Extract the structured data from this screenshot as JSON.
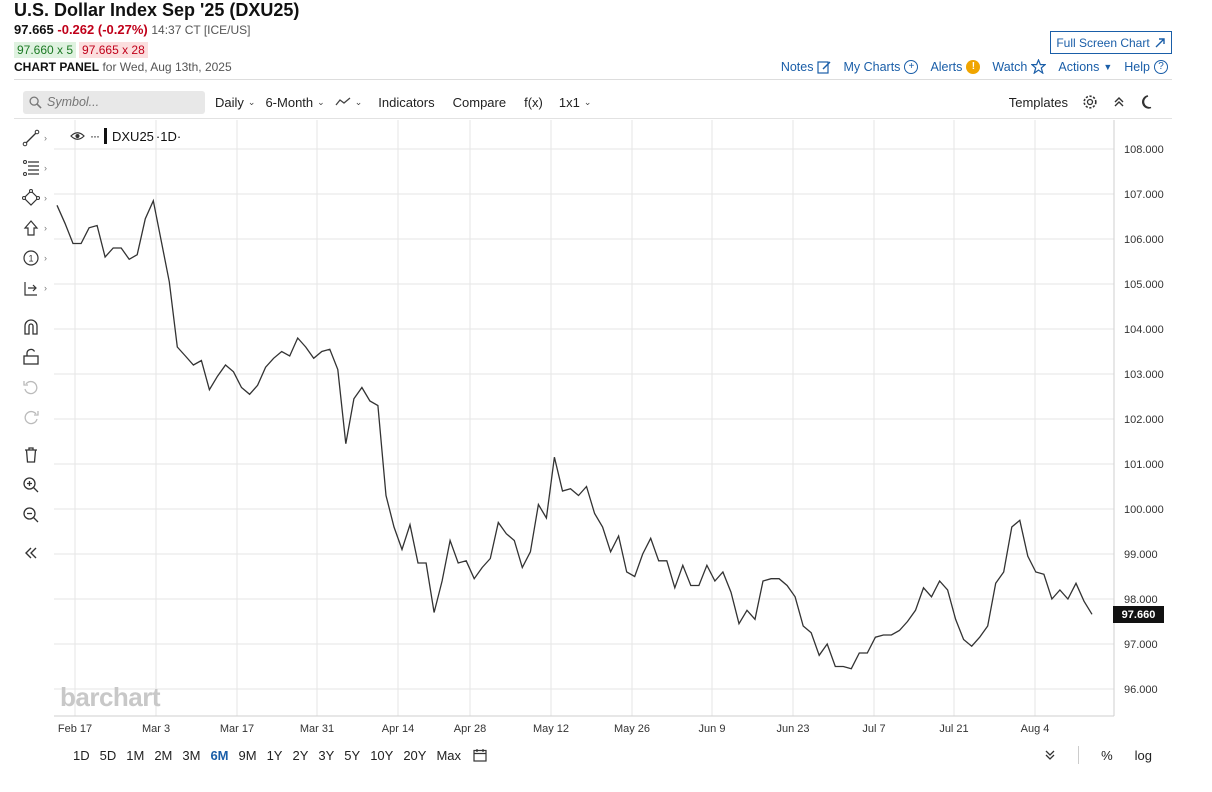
{
  "header": {
    "title": "U.S. Dollar Index Sep '25 (DXU25)",
    "last": "97.665",
    "change": "-0.262 (-0.27%)",
    "time": "14:37 CT [ICE/US]",
    "bid": "97.660 x 5",
    "ask": "97.665 x 28",
    "panel_label": "CHART PANEL",
    "panel_date": "for Wed, Aug 13th, 2025",
    "fullscreen_label": "Full Screen Chart",
    "menu": {
      "notes": "Notes",
      "my_charts": "My Charts",
      "alerts": "Alerts",
      "watch": "Watch",
      "actions": "Actions",
      "help": "Help"
    }
  },
  "toolbar": {
    "symbol_placeholder": "Symbol...",
    "interval": "Daily",
    "period": "6-Month",
    "indicators": "Indicators",
    "compare": "Compare",
    "fx": "f(x)",
    "layout": "1x1",
    "templates": "Templates"
  },
  "legend": {
    "symbol": "DXU25",
    "interval": "·1D·"
  },
  "watermark": "barchart",
  "price_tag": "97.660",
  "ranges": [
    "1D",
    "5D",
    "1M",
    "2M",
    "3M",
    "6M",
    "9M",
    "1Y",
    "2Y",
    "3Y",
    "5Y",
    "10Y",
    "20Y",
    "Max"
  ],
  "active_range": "6M",
  "bottom_right": {
    "percent": "%",
    "log": "log"
  },
  "icons": {
    "search": "search-icon",
    "settings": "gear-icon",
    "collapse": "collapse-up-icon",
    "theme": "moon-icon",
    "calendar": "calendar-icon"
  },
  "colors": {
    "accent": "#1a5ea8",
    "negative": "#c0001a",
    "positive": "#1b7a23",
    "line": "#333333"
  },
  "chart_data": {
    "type": "line",
    "y_ticks": [
      "108.000",
      "107.000",
      "106.000",
      "105.000",
      "104.000",
      "103.000",
      "102.000",
      "101.000",
      "100.000",
      "99.000",
      "98.000",
      "97.000",
      "96.000"
    ],
    "ylim": [
      95.5,
      108.4
    ],
    "x_ticks": [
      "Feb 17",
      "Mar 3",
      "Mar 17",
      "Mar 31",
      "Apr 14",
      "Apr 28",
      "May 12",
      "May 26",
      "Jun 9",
      "Jun 23",
      "Jul 7",
      "Jul 21",
      "Aug 4"
    ],
    "grid": true,
    "series": [
      {
        "values": [
          106.75,
          106.35,
          105.9,
          105.9,
          106.25,
          106.3,
          105.6,
          105.8,
          105.8,
          105.55,
          105.65,
          106.45,
          106.85,
          105.95,
          105.05,
          103.6,
          103.4,
          103.2,
          103.3,
          102.65,
          102.95,
          103.2,
          103.05,
          102.7,
          102.55,
          102.75,
          103.15,
          103.35,
          103.5,
          103.4,
          103.8,
          103.6,
          103.35,
          103.5,
          103.55,
          103.1,
          101.45,
          102.45,
          102.7,
          102.4,
          102.3,
          100.3,
          99.6,
          99.1,
          99.65,
          98.8,
          98.8,
          97.7,
          98.4,
          99.3,
          98.8,
          98.85,
          98.45,
          98.7,
          98.9,
          99.7,
          99.45,
          99.3,
          98.7,
          99.05,
          100.1,
          99.8,
          101.15,
          100.4,
          100.45,
          100.3,
          100.5,
          99.9,
          99.6,
          99.05,
          99.4,
          98.6,
          98.5,
          99.0,
          99.35,
          98.85,
          98.85,
          98.25,
          98.75,
          98.3,
          98.3,
          98.75,
          98.4,
          98.6,
          98.15,
          97.45,
          97.75,
          97.55,
          98.4,
          98.45,
          98.45,
          98.3,
          98.05,
          97.4,
          97.25,
          96.75,
          97.0,
          96.5,
          96.5,
          96.45,
          96.8,
          96.8,
          97.15,
          97.2,
          97.2,
          97.3,
          97.5,
          97.75,
          98.25,
          98.05,
          98.4,
          98.2,
          97.55,
          97.1,
          96.95,
          97.15,
          97.4,
          98.35,
          98.6,
          99.6,
          99.75,
          98.95,
          98.6,
          98.55,
          98.0,
          98.2,
          98.0,
          98.35,
          97.95,
          97.66
        ]
      }
    ]
  }
}
